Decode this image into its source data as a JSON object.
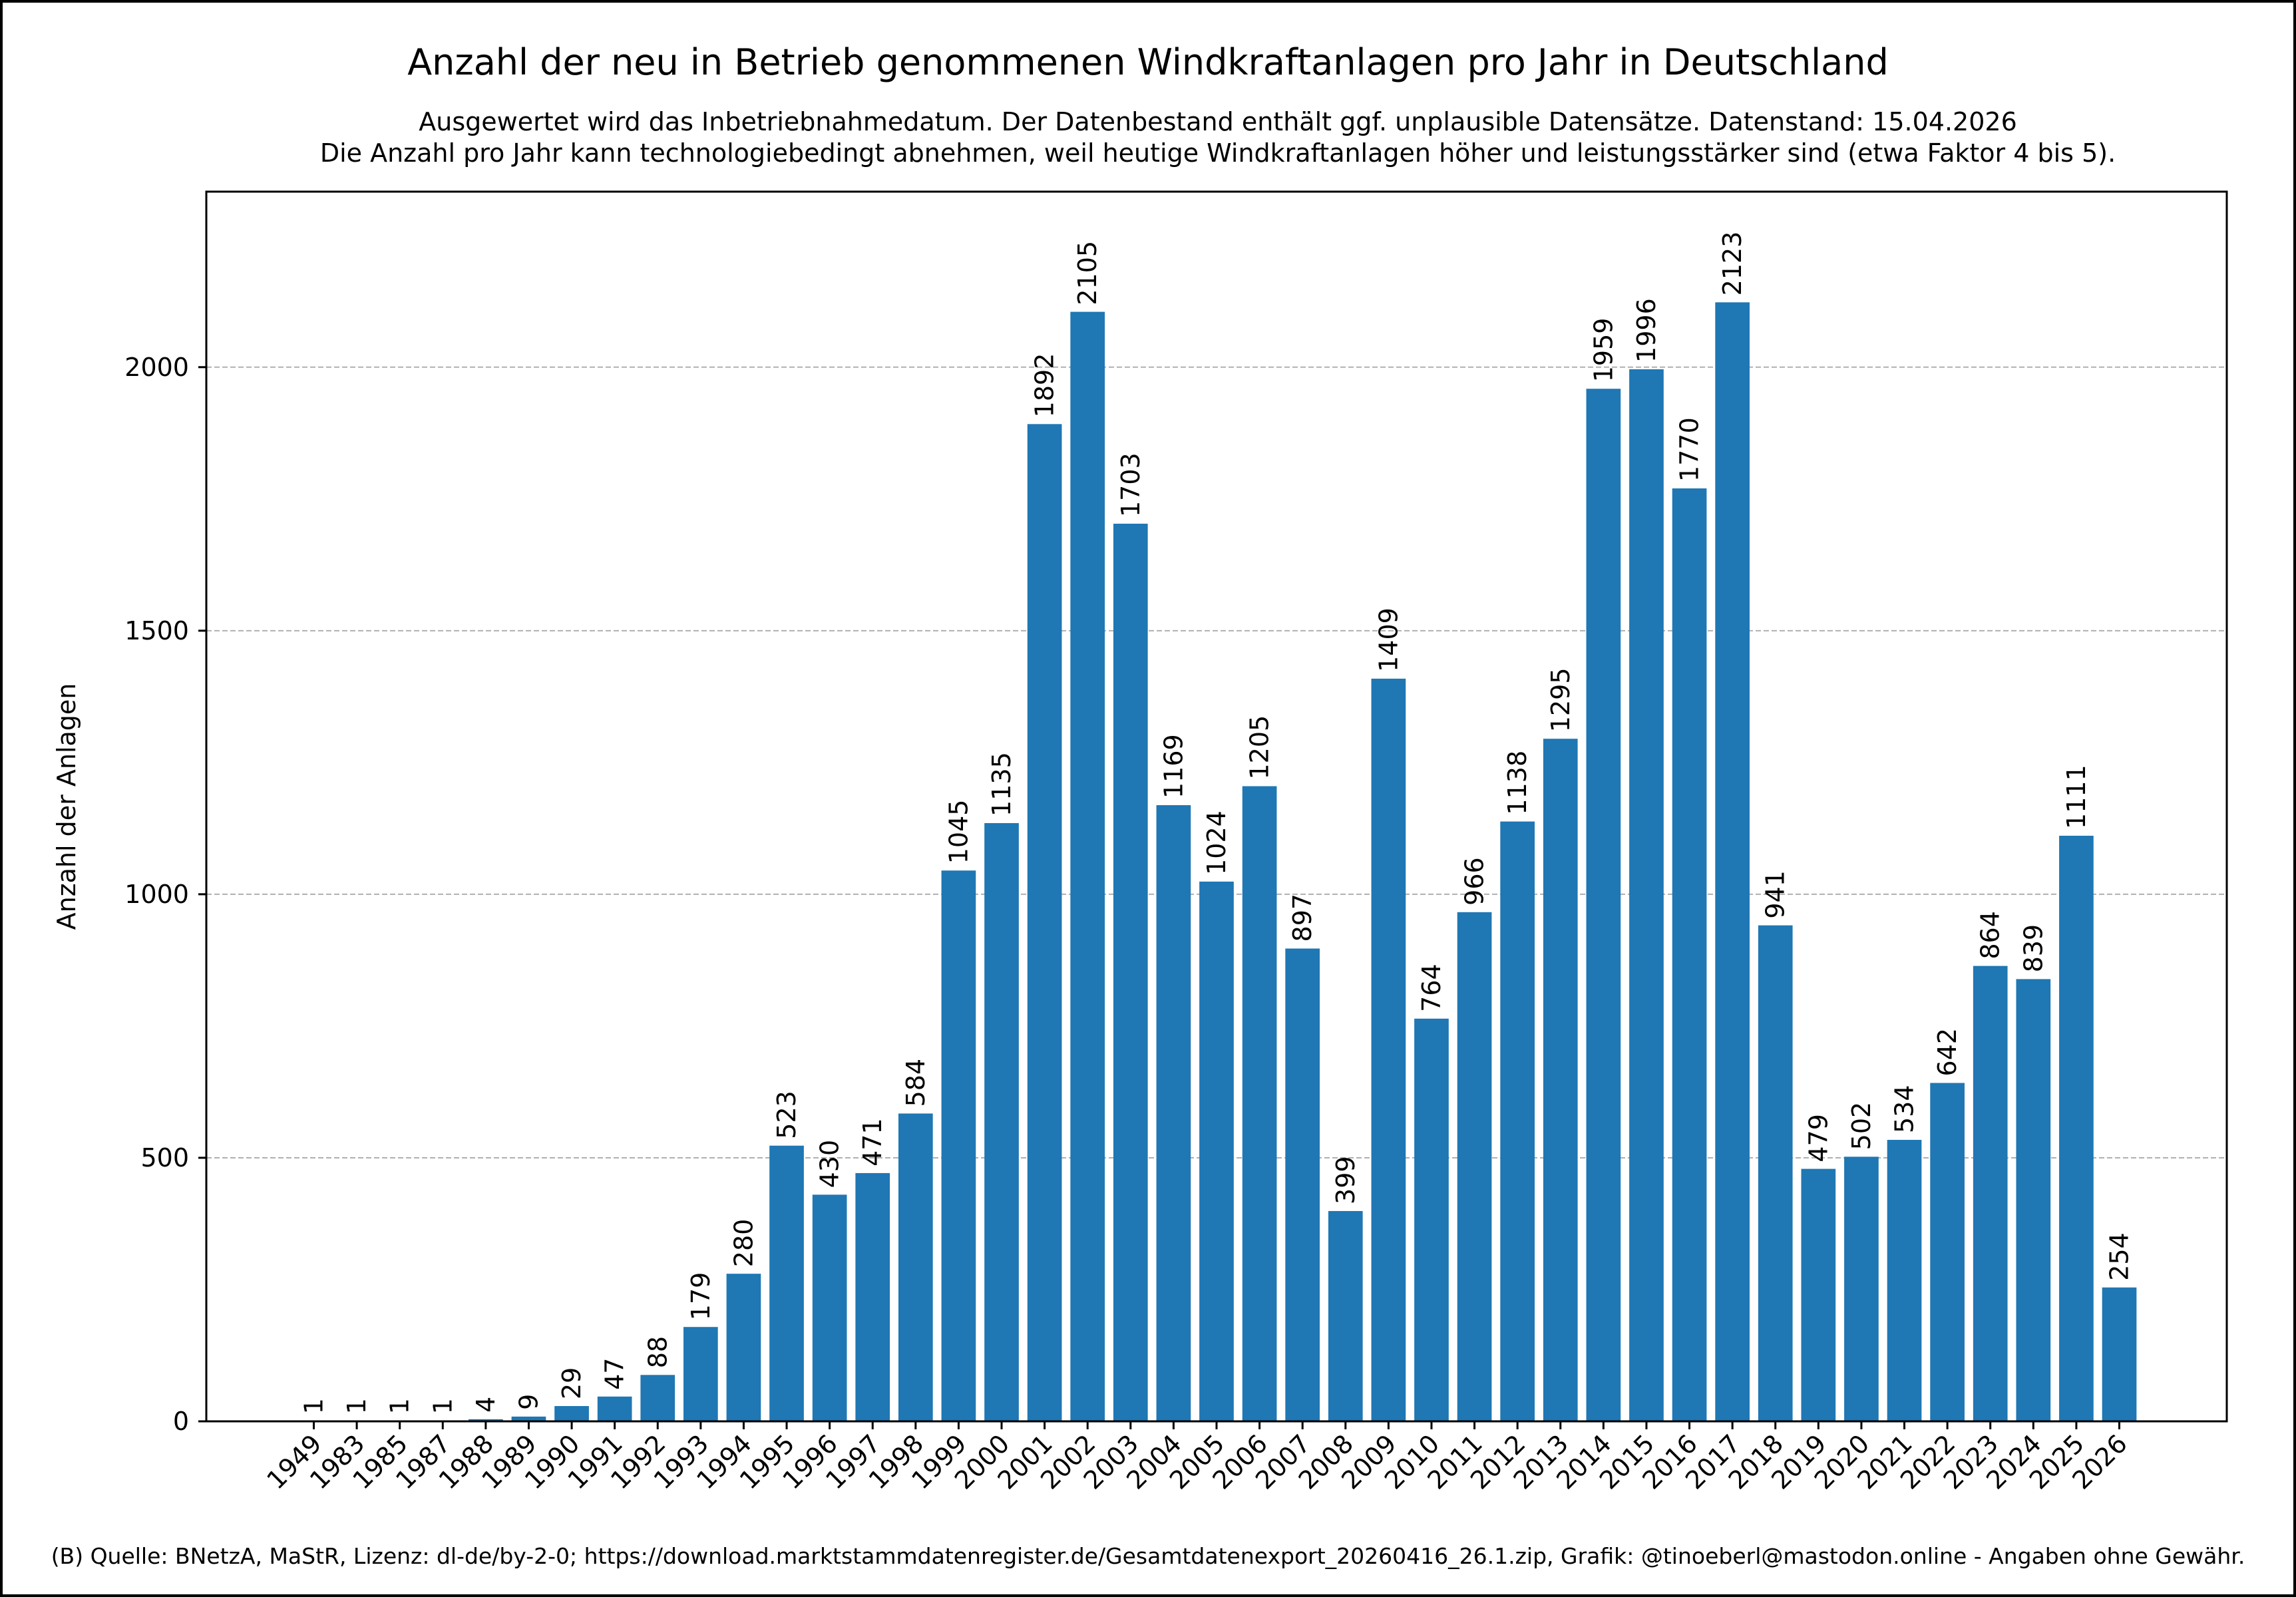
{
  "chart_data": {
    "type": "bar",
    "title": "Anzahl der neu in Betrieb genommenen Windkraftanlagen pro Jahr in Deutschland",
    "subtitle": [
      "Ausgewertet wird das Inbetriebnahmedatum. Der Datenbestand enthält ggf. unplausible Datensätze. Datenstand: 15.04.2026",
      "Die Anzahl pro Jahr kann technologiebedingt abnehmen, weil heutige Windkraftanlagen höher und leistungsstärker sind (etwa Faktor 4 bis 5)."
    ],
    "ylabel": "Anzahl der Anlagen",
    "footer": "(B) Quelle: BNetzA, MaStR, Lizenz: dl-de/by-2-0; https://download.marktstammdatenregister.de/Gesamtdatenexport_20260416_26.1.zip, Grafik: @tinoeberl@mastodon.online - Angaben ohne Gewähr.",
    "categories": [
      "1949",
      "1983",
      "1985",
      "1987",
      "1988",
      "1989",
      "1990",
      "1991",
      "1992",
      "1993",
      "1994",
      "1995",
      "1996",
      "1997",
      "1998",
      "1999",
      "2000",
      "2001",
      "2002",
      "2003",
      "2004",
      "2005",
      "2006",
      "2007",
      "2008",
      "2009",
      "2010",
      "2011",
      "2012",
      "2013",
      "2014",
      "2015",
      "2016",
      "2017",
      "2018",
      "2019",
      "2020",
      "2021",
      "2022",
      "2023",
      "2024",
      "2025",
      "2026"
    ],
    "values": [
      1,
      1,
      1,
      1,
      4,
      9,
      29,
      47,
      88,
      179,
      280,
      523,
      430,
      471,
      584,
      1045,
      1135,
      1892,
      2105,
      1703,
      1169,
      1024,
      1205,
      897,
      399,
      1409,
      764,
      966,
      1138,
      1295,
      1959,
      1996,
      1770,
      2123,
      941,
      479,
      502,
      534,
      642,
      864,
      839,
      1111,
      254
    ],
    "color": "#1f77b4",
    "ylim": [
      0,
      2333
    ],
    "yticks": [
      0,
      500,
      1000,
      1500,
      2000
    ],
    "grid": true
  }
}
